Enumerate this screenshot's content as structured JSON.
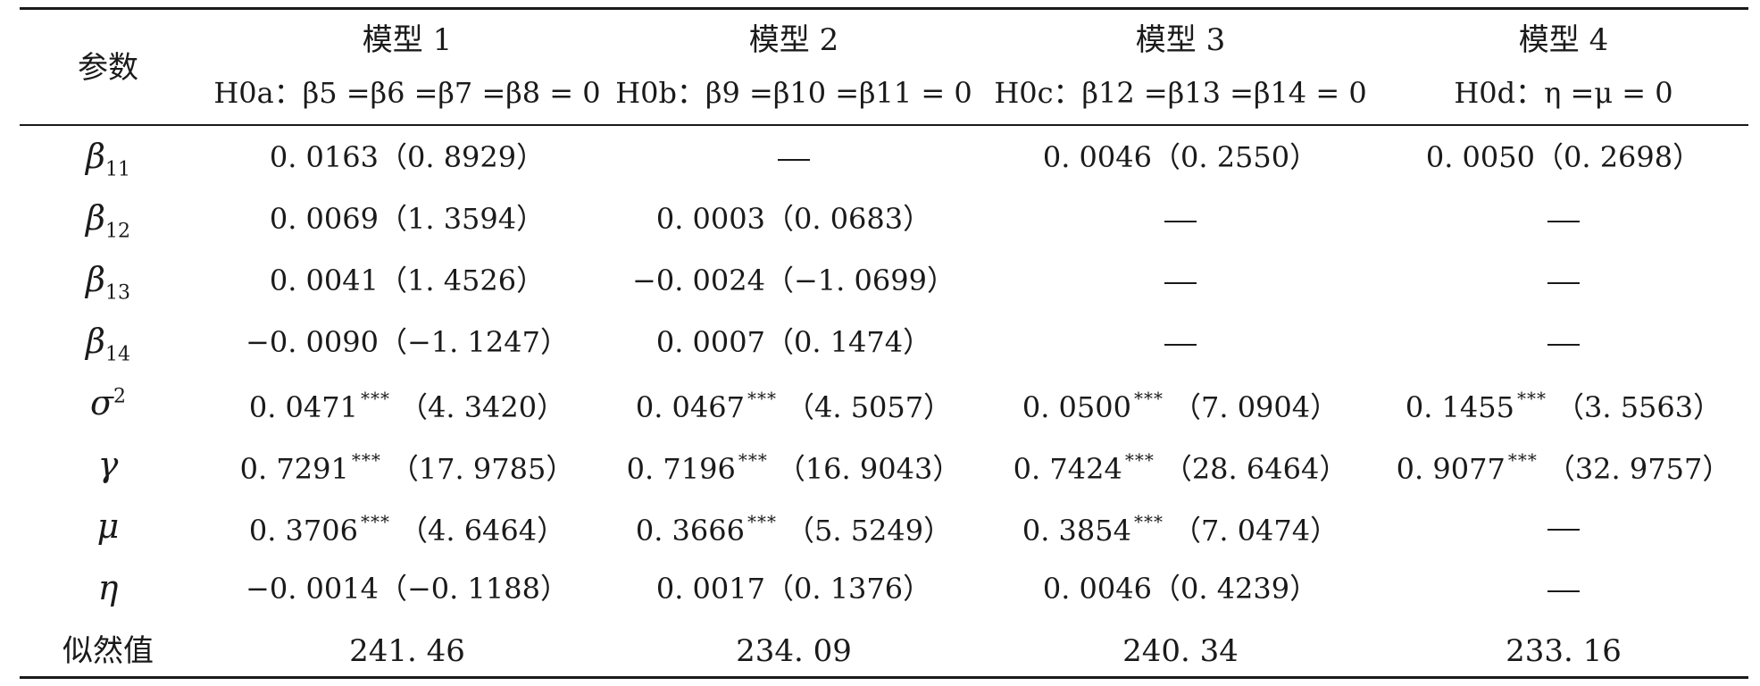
{
  "table": {
    "param_header": "参数",
    "models": [
      {
        "title": "模型 1",
        "hyp_label": "H0a：",
        "hyp_expr": "β5 =β6 =β7 =β8 = 0"
      },
      {
        "title": "模型 2",
        "hyp_label": "H0b：",
        "hyp_expr": "β9 =β10 =β11 = 0"
      },
      {
        "title": "模型 3",
        "hyp_label": "H0c：",
        "hyp_expr": "β12 =β13 =β14 = 0"
      },
      {
        "title": "模型 4",
        "hyp_label": "H0d：",
        "hyp_expr": "η =μ = 0"
      }
    ],
    "rows": [
      {
        "param": "β11",
        "cells": [
          {
            "v": "0. 0163",
            "s": "",
            "t": "（0. 8929）"
          },
          {
            "dash": true
          },
          {
            "v": "0. 0046",
            "s": "",
            "t": "（0. 2550）"
          },
          {
            "v": "0. 0050",
            "s": "",
            "t": "（0. 2698）"
          }
        ]
      },
      {
        "param": "β12",
        "cells": [
          {
            "v": "0. 0069",
            "s": "",
            "t": "（1. 3594）"
          },
          {
            "v": "0. 0003",
            "s": "",
            "t": "（0. 0683）"
          },
          {
            "dash": true
          },
          {
            "dash": true
          }
        ]
      },
      {
        "param": "β13",
        "cells": [
          {
            "v": "0. 0041",
            "s": "",
            "t": "（1. 4526）"
          },
          {
            "v": "−0. 0024",
            "s": "",
            "t": "（−1. 0699）"
          },
          {
            "dash": true
          },
          {
            "dash": true
          }
        ]
      },
      {
        "param": "β14",
        "cells": [
          {
            "v": "−0. 0090",
            "s": "",
            "t": "（−1. 1247）"
          },
          {
            "v": "0. 0007",
            "s": "",
            "t": "（0. 1474）"
          },
          {
            "dash": true
          },
          {
            "dash": true
          }
        ]
      },
      {
        "param": "σ2",
        "cells": [
          {
            "v": "0. 0471",
            "s": "***",
            "t": "（4. 3420）"
          },
          {
            "v": "0. 0467",
            "s": "***",
            "t": "（4. 5057）"
          },
          {
            "v": "0. 0500",
            "s": "***",
            "t": "（7. 0904）"
          },
          {
            "v": "0. 1455",
            "s": "***",
            "t": "（3. 5563）"
          }
        ]
      },
      {
        "param": "γ",
        "cells": [
          {
            "v": "0. 7291",
            "s": "***",
            "t": "（17. 9785）"
          },
          {
            "v": "0. 7196",
            "s": "***",
            "t": "（16. 9043）"
          },
          {
            "v": "0. 7424",
            "s": "***",
            "t": "（28. 6464）"
          },
          {
            "v": "0. 9077",
            "s": "***",
            "t": "（32. 9757）"
          }
        ]
      },
      {
        "param": "μ",
        "cells": [
          {
            "v": "0. 3706",
            "s": "***",
            "t": "（4. 6464）"
          },
          {
            "v": "0. 3666",
            "s": "***",
            "t": "（5. 5249）"
          },
          {
            "v": "0. 3854",
            "s": "***",
            "t": "（7. 0474）"
          },
          {
            "dash": true
          }
        ]
      },
      {
        "param": "η",
        "cells": [
          {
            "v": "−0. 0014",
            "s": "",
            "t": "（−0. 1188）"
          },
          {
            "v": "0. 0017",
            "s": "",
            "t": "（0. 1376）"
          },
          {
            "v": "0. 0046",
            "s": "",
            "t": "（0. 4239）"
          },
          {
            "dash": true
          }
        ]
      }
    ],
    "likelihood_label": "似然值",
    "likelihood_values": [
      "241. 46",
      "234. 09",
      "240. 34",
      "233. 16"
    ]
  }
}
